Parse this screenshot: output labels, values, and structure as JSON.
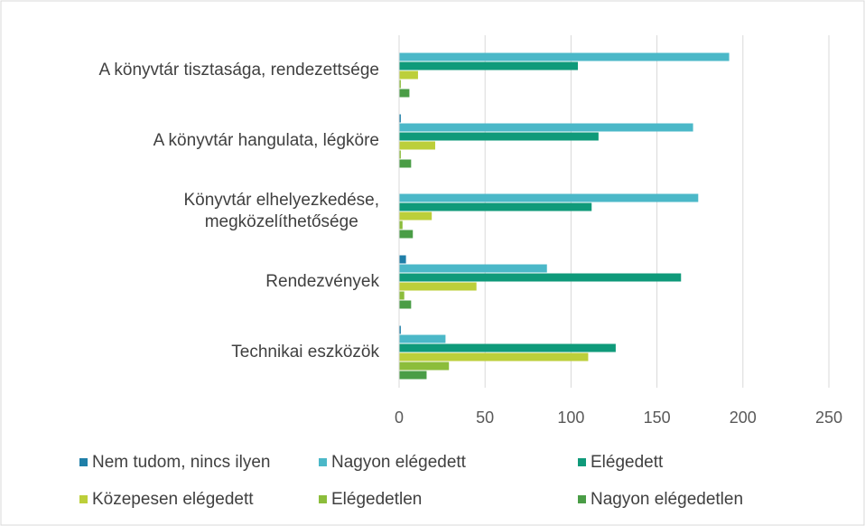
{
  "chart_data": {
    "type": "barh",
    "categories": [
      "A könyvtár tisztasága, rendezettsége",
      "A könyvtár hangulata, légköre",
      "Könyvtár elhelyezkedése,\nmegközelíthetősége",
      "Rendezvények",
      "Technikai eszközök"
    ],
    "series": [
      {
        "name": "Nem tudom, nincs ilyen",
        "color": "#1f7fa8",
        "values": [
          0,
          1,
          0,
          4,
          1
        ]
      },
      {
        "name": "Nagyon elégedett",
        "color": "#4bb8c8",
        "values": [
          192,
          171,
          174,
          86,
          27
        ]
      },
      {
        "name": "Elégedett",
        "color": "#0f9a7a",
        "values": [
          104,
          116,
          112,
          164,
          126
        ]
      },
      {
        "name": "Közepesen elégedett",
        "color": "#bccf3a",
        "values": [
          11,
          21,
          19,
          45,
          110
        ]
      },
      {
        "name": "Elégedetlen",
        "color": "#8cbd3b",
        "values": [
          1,
          1,
          2,
          3,
          29
        ]
      },
      {
        "name": "Nagyon elégedetlen",
        "color": "#4a9d46",
        "values": [
          6,
          7,
          8,
          7,
          16
        ]
      }
    ],
    "xlim": [
      0,
      250
    ],
    "xticks": [
      0,
      50,
      100,
      150,
      200,
      250
    ],
    "grid": true
  }
}
